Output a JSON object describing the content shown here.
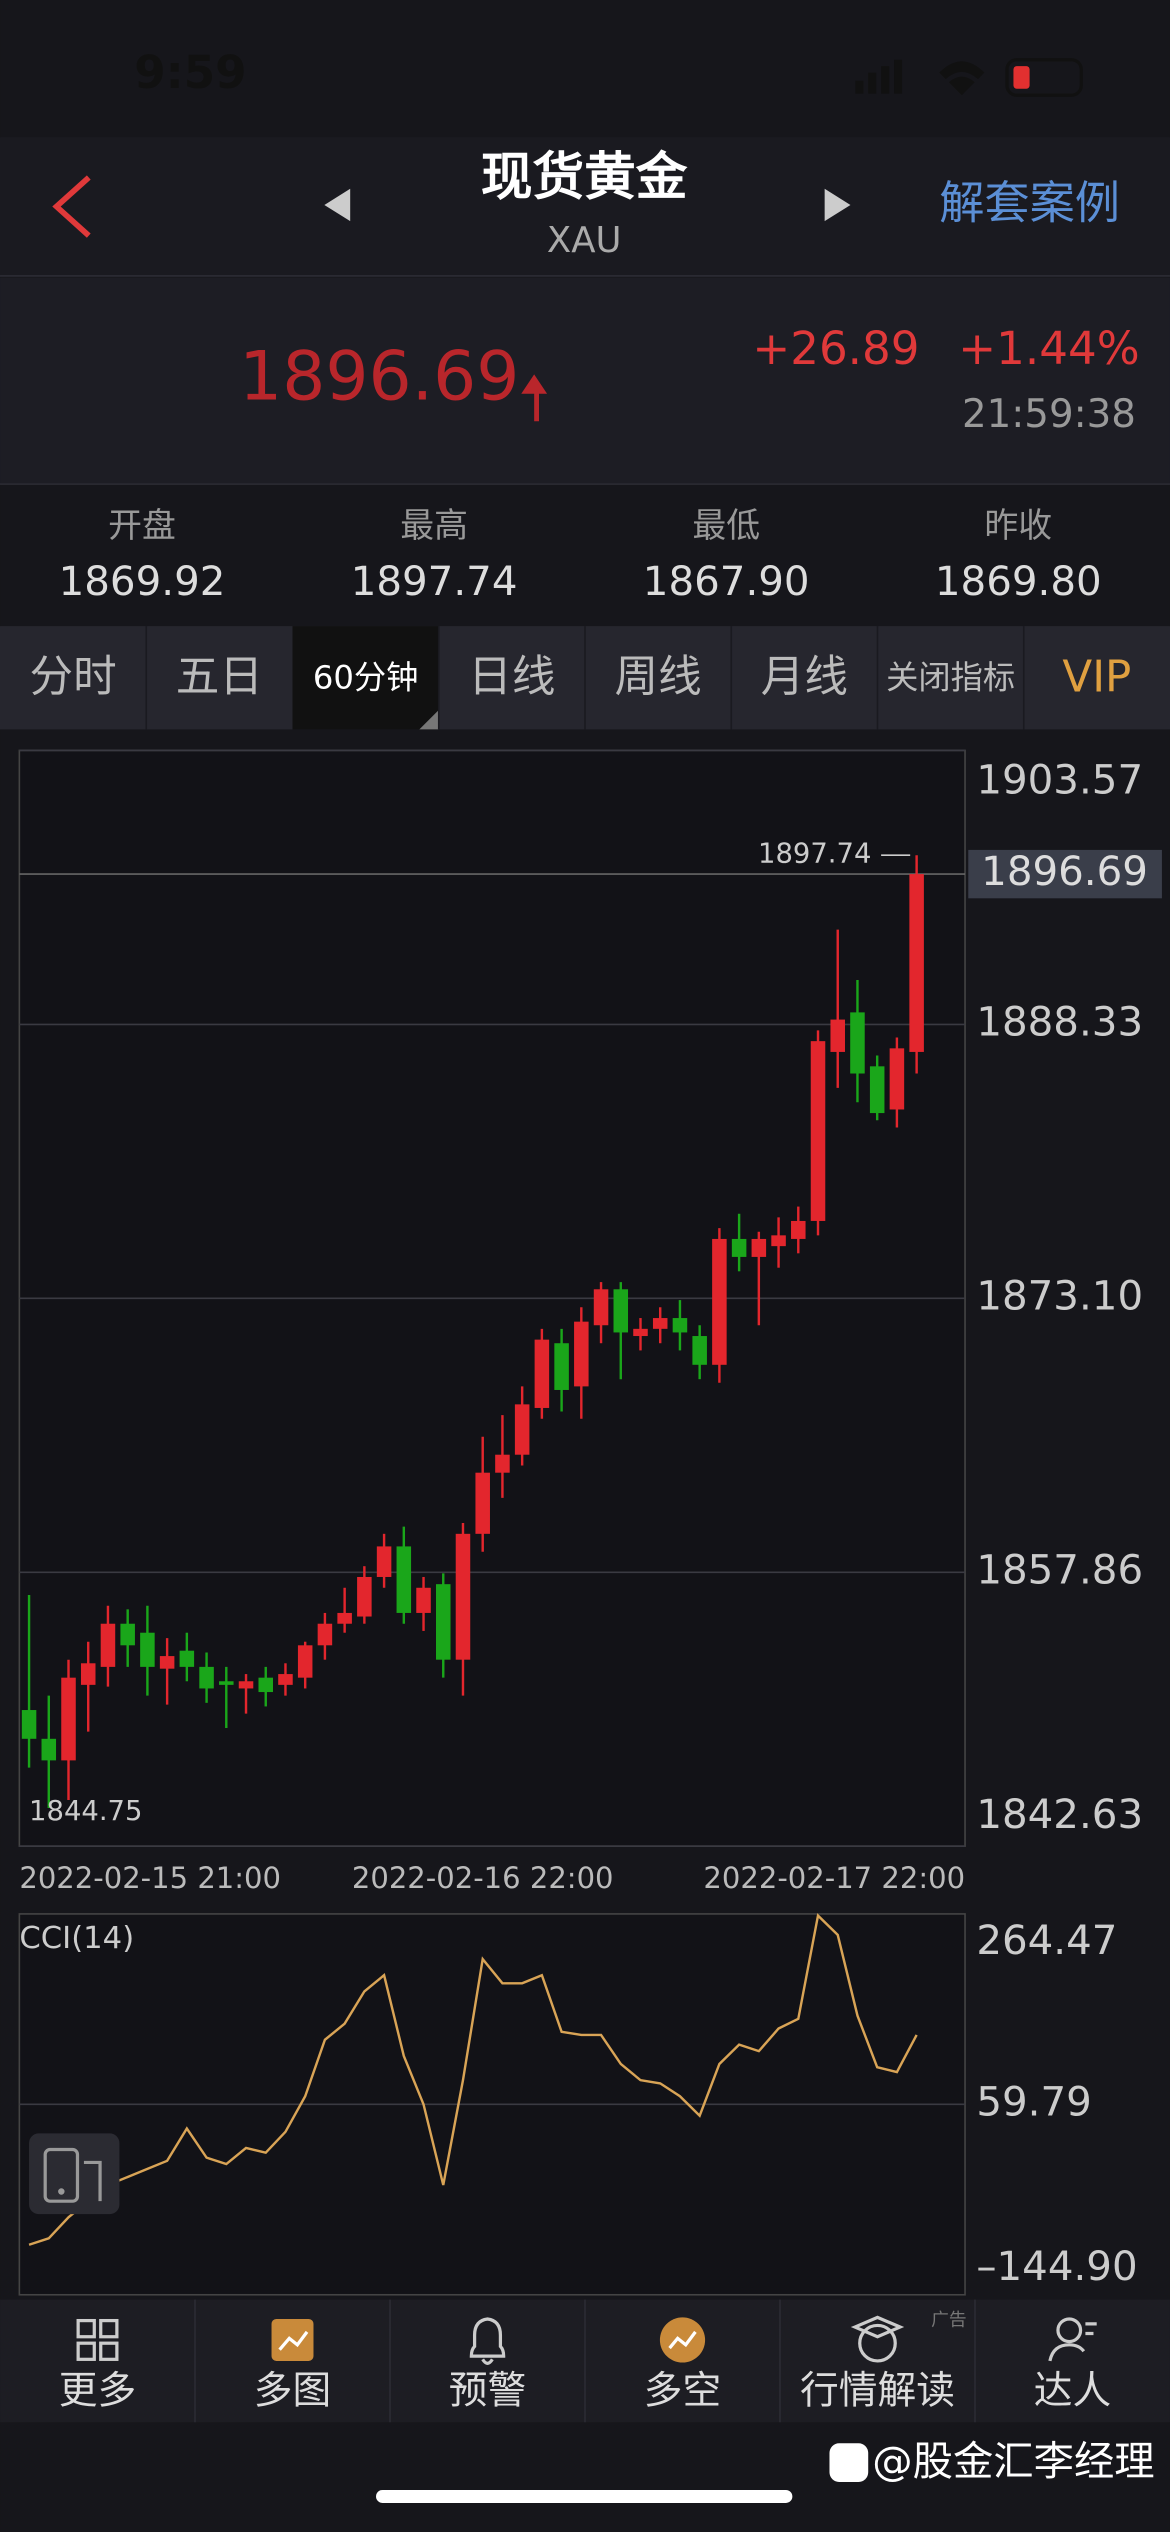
{
  "status_bar": {
    "time": "9:59"
  },
  "header": {
    "title": "现货黄金",
    "subtitle": "XAU",
    "action": "解套案例"
  },
  "quote": {
    "price": "1896.69",
    "change": "+26.89",
    "change_pct": "+1.44%",
    "time": "21:59:38"
  },
  "stats": [
    {
      "label": "开盘",
      "value": "1869.92"
    },
    {
      "label": "最高",
      "value": "1897.74"
    },
    {
      "label": "最低",
      "value": "1867.90"
    },
    {
      "label": "昨收",
      "value": "1869.80"
    }
  ],
  "tabs": [
    {
      "label": "分时"
    },
    {
      "label": "五日"
    },
    {
      "label": "60分钟",
      "selected": true
    },
    {
      "label": "日线"
    },
    {
      "label": "周线"
    },
    {
      "label": "月线"
    },
    {
      "label": "关闭指标"
    },
    {
      "label": "VIP"
    }
  ],
  "chart_data": [
    {
      "type": "candlestick",
      "up_color": "#e3262d",
      "down_color": "#1aa61a",
      "grid": true,
      "categories": [
        "2022-02-15 21:00",
        null,
        null,
        null,
        null,
        null,
        null,
        null,
        null,
        null,
        null,
        null,
        null,
        null,
        null,
        null,
        null,
        null,
        null,
        null,
        null,
        null,
        null,
        "2022-02-16 22:00",
        null,
        null,
        null,
        null,
        null,
        null,
        null,
        null,
        null,
        null,
        null,
        null,
        null,
        null,
        null,
        null,
        null,
        null,
        null,
        null,
        null,
        "2022-02-17 22:00"
      ],
      "open": [
        1850.2,
        1848.6,
        1847.4,
        1851.6,
        1852.6,
        1855.0,
        1854.5,
        1852.5,
        1853.5,
        1852.6,
        1851.8,
        1851.4,
        1852.0,
        1851.6,
        1852.0,
        1853.8,
        1855.0,
        1855.4,
        1857.6,
        1859.3,
        1855.6,
        1857.2,
        1853.0,
        1860.0,
        1863.4,
        1864.4,
        1867.0,
        1870.6,
        1868.2,
        1871.6,
        1873.6,
        1871.0,
        1871.4,
        1872.0,
        1871.0,
        1869.4,
        1876.4,
        1875.4,
        1876.0,
        1876.4,
        1877.4,
        1886.8,
        1889.0,
        1886.0,
        1883.6,
        1886.8
      ],
      "high": [
        1856.6,
        1851.0,
        1853.0,
        1854.0,
        1856.0,
        1855.8,
        1856.0,
        1854.2,
        1854.5,
        1853.4,
        1852.6,
        1852.2,
        1852.6,
        1852.8,
        1854.0,
        1855.6,
        1857.0,
        1858.2,
        1860.0,
        1860.4,
        1857.6,
        1857.8,
        1860.6,
        1865.4,
        1866.6,
        1868.2,
        1871.4,
        1871.4,
        1872.6,
        1874.0,
        1874.0,
        1872.0,
        1872.6,
        1873.0,
        1871.6,
        1877.0,
        1877.8,
        1876.8,
        1877.6,
        1878.2,
        1888.0,
        1893.6,
        1890.8,
        1886.6,
        1887.6,
        1897.74
      ],
      "low": [
        1847.0,
        1844.75,
        1845.2,
        1849.0,
        1851.5,
        1852.6,
        1851.0,
        1850.5,
        1851.8,
        1850.6,
        1849.2,
        1850.0,
        1850.4,
        1851.0,
        1851.4,
        1853.0,
        1854.5,
        1855.0,
        1857.0,
        1855.0,
        1854.6,
        1852.0,
        1851.0,
        1859.0,
        1862.0,
        1863.8,
        1866.4,
        1866.8,
        1866.4,
        1870.6,
        1868.6,
        1870.2,
        1870.6,
        1870.2,
        1868.6,
        1868.4,
        1874.6,
        1871.6,
        1874.8,
        1875.6,
        1876.6,
        1884.8,
        1884.0,
        1883.0,
        1882.6,
        1885.6
      ],
      "close": [
        1848.6,
        1847.4,
        1852.0,
        1852.8,
        1855.0,
        1853.8,
        1852.6,
        1853.2,
        1852.6,
        1851.4,
        1851.6,
        1851.8,
        1851.2,
        1852.2,
        1853.8,
        1855.0,
        1855.6,
        1857.6,
        1859.3,
        1855.6,
        1857.0,
        1853.0,
        1860.0,
        1863.4,
        1864.4,
        1867.2,
        1870.8,
        1868.0,
        1871.8,
        1873.6,
        1871.2,
        1871.4,
        1872.0,
        1871.2,
        1869.4,
        1876.4,
        1875.4,
        1876.4,
        1876.6,
        1877.4,
        1887.4,
        1888.6,
        1885.6,
        1883.4,
        1887.0,
        1896.69
      ],
      "ylim": [
        1842.63,
        1903.57
      ],
      "yticks": [
        1903.57,
        1888.33,
        {
          "value": 1873.1,
          "label": "1873.10"
        },
        1857.86,
        1842.63
      ],
      "last_price": 1896.69,
      "max_label": 1897.74,
      "min_label": 1844.75
    },
    {
      "type": "line",
      "title": "CCI(14)",
      "color": "#d9a456",
      "values": [
        -91.1,
        -84.2,
        -61.6,
        -44.3,
        -26.9,
        -18.3,
        -9.6,
        -0.9,
        33.8,
        2.5,
        -4.4,
        12.9,
        7.8,
        30.3,
        68.5,
        129.2,
        146.5,
        181.2,
        198.6,
        111.8,
        59.8,
        -26.9,
        85.8,
        215.9,
        189.9,
        189.9,
        198.6,
        137.8,
        134.4,
        134.4,
        103.2,
        85.8,
        82.3,
        68.5,
        47.6,
        103.2,
        124.0,
        117.0,
        141.3,
        151.7,
        262.7,
        241.9,
        155.2,
        99.7,
        94.5,
        134.4
      ],
      "ylim": [
        -144.9,
        264.47
      ],
      "yticks": [
        264.47,
        59.79,
        {
          "value": -144.9,
          "label": "–144.90"
        }
      ]
    }
  ],
  "nav": [
    {
      "label": "更多"
    },
    {
      "label": "多图"
    },
    {
      "label": "预警"
    },
    {
      "label": "多空"
    },
    {
      "label": "行情解读"
    },
    {
      "label": "达人"
    }
  ],
  "ad_tag": "广告",
  "watermark": "@股金汇李经理"
}
